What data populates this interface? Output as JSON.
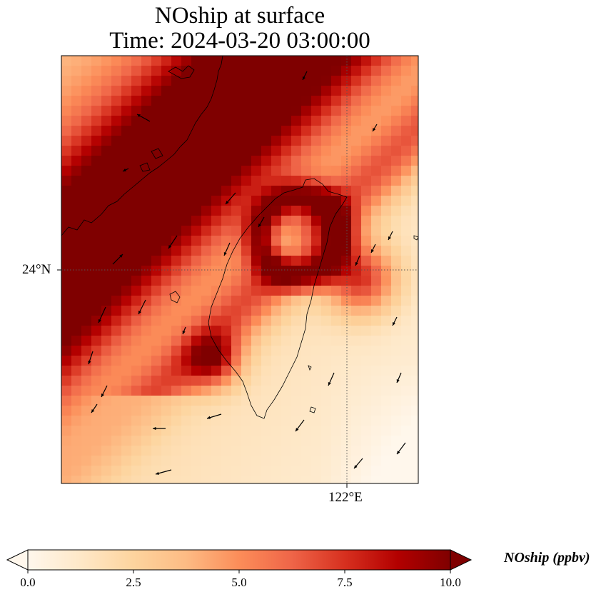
{
  "title": {
    "line1": "NOship at surface",
    "line2": "Time: 2024-03-20 03:00:00"
  },
  "axes": {
    "lat_tick": "24°N",
    "lon_tick": "122°E"
  },
  "colorbar": {
    "label": "NOship (ppbv)",
    "ticks": [
      "0.0",
      "2.5",
      "5.0",
      "7.5",
      "10.0"
    ],
    "min": 0,
    "max": 10,
    "colormap": "OrRd",
    "extend": "both",
    "colors": [
      "#fff7ec",
      "#fee8c8",
      "#fdd49e",
      "#fdbb84",
      "#fc8d59",
      "#ef6548",
      "#d7301f",
      "#b30000",
      "#7f0000"
    ]
  },
  "map": {
    "variable": "NOship",
    "units": "ppbv",
    "gridlines": "dotted",
    "coastlines": true,
    "wind_vectors": true
  }
}
